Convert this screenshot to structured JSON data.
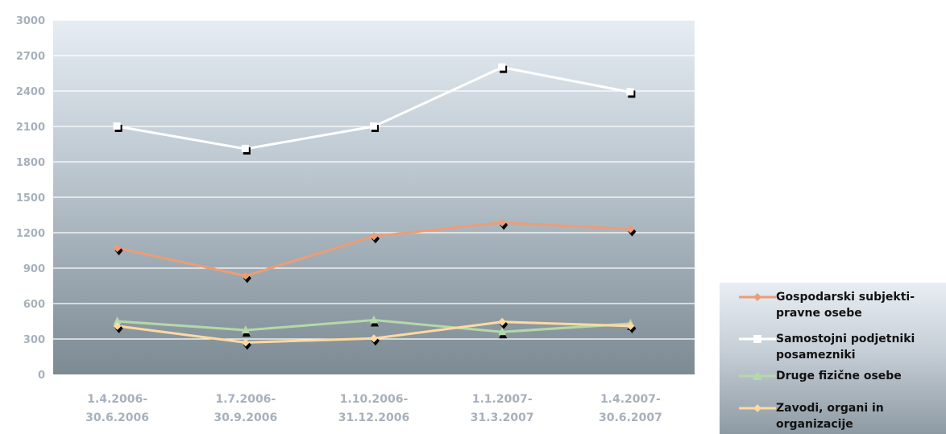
{
  "chart_data": {
    "type": "line",
    "categories": [
      "1.4.2006-30.6.2006",
      "1.7.2006-30.9.2006",
      "1.10.2006-31.12.2006",
      "1.1.2007-31.3.2007",
      "1.4.2007-30.6.2007"
    ],
    "category_lines": [
      [
        "1.4.2006-",
        "30.6.2006"
      ],
      [
        "1.7.2006-",
        "30.9.2006"
      ],
      [
        "1.10.2006-",
        "31.12.2006"
      ],
      [
        "1.1.2007-",
        "31.3.2007"
      ],
      [
        "1.4.2007-",
        "30.6.2007"
      ]
    ],
    "ylim": [
      0,
      3000
    ],
    "yticks": [
      0,
      300,
      600,
      900,
      1200,
      1500,
      1800,
      2100,
      2400,
      2700,
      3000
    ],
    "grid": true,
    "legend_position": "bottom-right",
    "series": [
      {
        "name": "Gospodarski subjekti-pravne osebe",
        "legend_lines": [
          "Gospodarski subjekti-",
          "pravne osebe"
        ],
        "color": "#ec9d76",
        "marker": "diamond",
        "values": [
          1070,
          835,
          1170,
          1285,
          1230
        ]
      },
      {
        "name": "Samostojni podjetniki posamezniki",
        "legend_lines": [
          "Samostojni podjetniki",
          "posamezniki"
        ],
        "color": "#ffffff",
        "marker": "square",
        "values": [
          2100,
          1910,
          2100,
          2600,
          2390
        ]
      },
      {
        "name": "Druge fizične osebe",
        "legend_lines": [
          "Druge fizične osebe"
        ],
        "color": "#b5d8a8",
        "marker": "triangle",
        "values": [
          450,
          375,
          460,
          360,
          430
        ]
      },
      {
        "name": "Zavodi, organi in organizacije",
        "legend_lines": [
          "Zavodi, organi in",
          "organizacije"
        ],
        "color": "#ffd9a0",
        "marker": "diamond",
        "values": [
          410,
          270,
          305,
          445,
          410
        ]
      }
    ]
  }
}
